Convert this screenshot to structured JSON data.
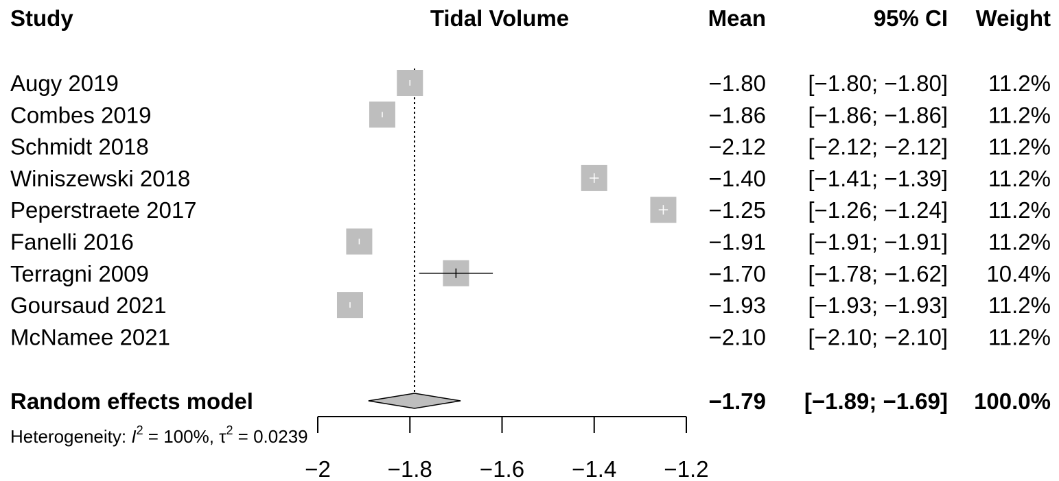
{
  "headers": {
    "study": "Study",
    "effect": "Tidal Volume",
    "mean": "Mean",
    "ci": "95% CI",
    "weight": "Weight"
  },
  "chart_data": {
    "type": "forest",
    "xlim": [
      -2,
      -1.2
    ],
    "xticks": [
      -2,
      -1.8,
      -1.6,
      -1.4,
      -1.2
    ],
    "xtick_labels": [
      "−2",
      "−1.8",
      "−1.6",
      "−1.4",
      "−1.2"
    ],
    "studies": [
      {
        "name": "Augy 2019",
        "mean": -1.8,
        "lower": -1.8,
        "upper": -1.8,
        "mean_text": "−1.80",
        "ci_text": "[−1.80; −1.80]",
        "weight_text": "11.2%"
      },
      {
        "name": "Combes 2019",
        "mean": -1.86,
        "lower": -1.86,
        "upper": -1.86,
        "mean_text": "−1.86",
        "ci_text": "[−1.86; −1.86]",
        "weight_text": "11.2%"
      },
      {
        "name": "Schmidt 2018",
        "mean": -2.12,
        "lower": -2.12,
        "upper": -2.12,
        "mean_text": "−2.12",
        "ci_text": "[−2.12; −2.12]",
        "weight_text": "11.2%"
      },
      {
        "name": "Winiszewski 2018",
        "mean": -1.4,
        "lower": -1.41,
        "upper": -1.39,
        "mean_text": "−1.40",
        "ci_text": "[−1.41; −1.39]",
        "weight_text": "11.2%"
      },
      {
        "name": "Peperstraete 2017",
        "mean": -1.25,
        "lower": -1.26,
        "upper": -1.24,
        "mean_text": "−1.25",
        "ci_text": "[−1.26; −1.24]",
        "weight_text": "11.2%"
      },
      {
        "name": "Fanelli 2016",
        "mean": -1.91,
        "lower": -1.91,
        "upper": -1.91,
        "mean_text": "−1.91",
        "ci_text": "[−1.91; −1.91]",
        "weight_text": "11.2%"
      },
      {
        "name": "Terragni 2009",
        "mean": -1.7,
        "lower": -1.78,
        "upper": -1.62,
        "mean_text": "−1.70",
        "ci_text": "[−1.78; −1.62]",
        "weight_text": "10.4%"
      },
      {
        "name": "Goursaud 2021",
        "mean": -1.93,
        "lower": -1.93,
        "upper": -1.93,
        "mean_text": "−1.93",
        "ci_text": "[−1.93; −1.93]",
        "weight_text": "11.2%"
      },
      {
        "name": "McNamee 2021",
        "mean": -2.1,
        "lower": -2.1,
        "upper": -2.1,
        "mean_text": "−2.10",
        "ci_text": "[−2.10; −2.10]",
        "weight_text": "11.2%"
      }
    ],
    "pooled": {
      "name": "Random effects model",
      "mean": -1.79,
      "lower": -1.89,
      "upper": -1.69,
      "mean_text": "−1.79",
      "ci_text": "[−1.89; −1.69]",
      "weight_text": "100.0%"
    },
    "heterogeneity": {
      "prefix": "Heterogeneity: ",
      "i2_symbol": "I",
      "i2_value": " = 100%, ",
      "tau2_symbol": "τ",
      "tau2_value": " = 0.0239",
      "superscript": "2"
    },
    "reference_line": -1.79,
    "colors": {
      "square": "#bebebe",
      "diamond": "#bebebe",
      "line": "#000000",
      "ci_inside_square": "#ffffff"
    }
  }
}
